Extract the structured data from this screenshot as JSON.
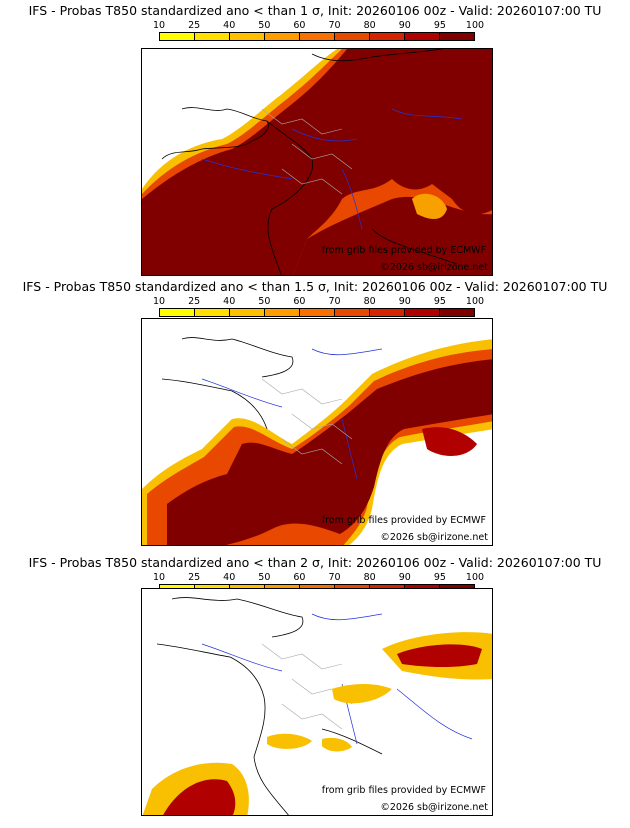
{
  "colorbar": {
    "ticks": [
      "10",
      "25",
      "40",
      "50",
      "60",
      "70",
      "80",
      "90",
      "95",
      "100"
    ],
    "colors": [
      "#ffff00",
      "#ffe000",
      "#ffc000",
      "#ff9c00",
      "#f87000",
      "#e84800",
      "#d42400",
      "#b00000",
      "#800000"
    ]
  },
  "panels": [
    {
      "title": "IFS - Probas T850  standardized ano < than 1 σ, Init: 20260106 00z - Valid: 20260107:00 TU"
    },
    {
      "title": "IFS - Probas T850  standardized ano < than 1.5 σ, Init: 20260106 00z - Valid: 20260107:00 TU"
    },
    {
      "title": "IFS - Probas T850  standardized ano < than 2 σ, Init: 20260106 00z - Valid: 20260107:00 TU"
    }
  ],
  "credits": {
    "source": "from grib files provided by ECMWF",
    "copyright": "©2026 sb@irizone.net"
  },
  "map_colors": {
    "land_line": "#000000",
    "rivers": "#2233dd",
    "borders": "#aaaaaa",
    "background": "#ffffff"
  }
}
